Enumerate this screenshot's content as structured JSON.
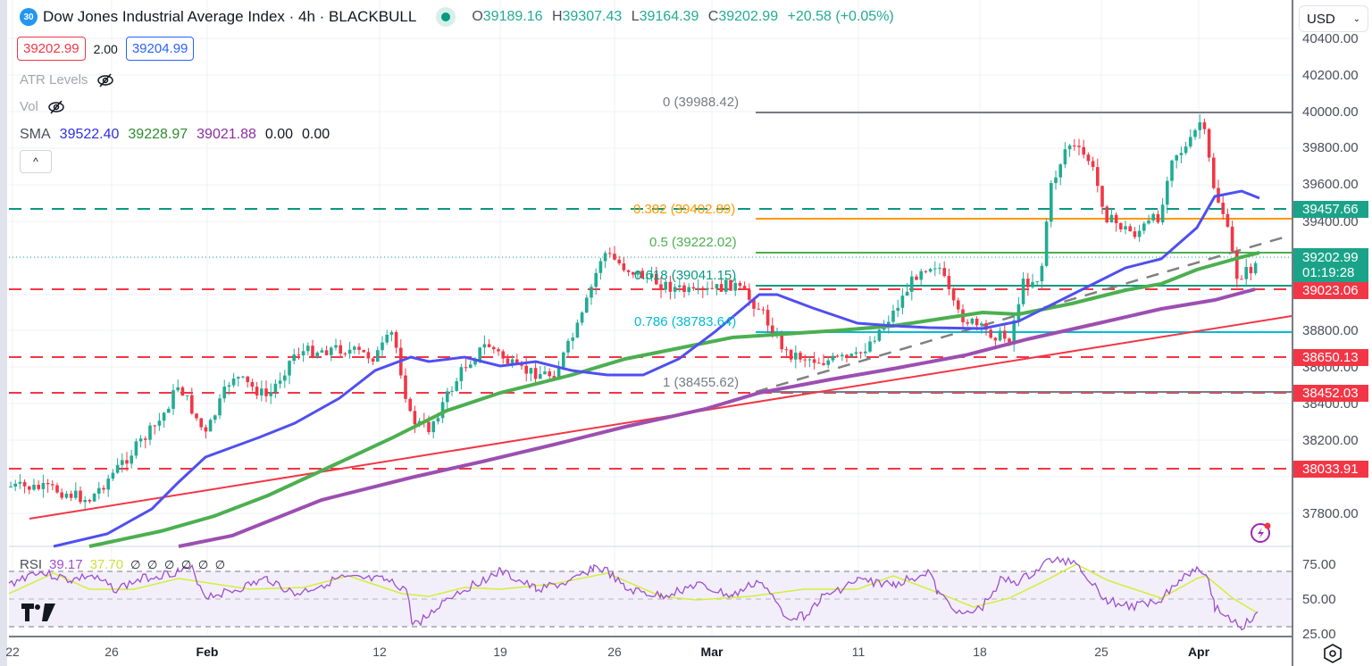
{
  "header": {
    "symbol_badge": "30",
    "title": "Dow Jones Industrial Average Index · 4h · BLACKBULL",
    "ohlc": {
      "o_label": "O",
      "o": "39189.16",
      "h_label": "H",
      "h": "39307.43",
      "l_label": "L",
      "l": "39164.39",
      "c_label": "C",
      "c": "39202.99",
      "change": "+20.58 (+0.05%)"
    },
    "sell_price": "39202.99",
    "spread": "2.00",
    "buy_price": "39204.99"
  },
  "indicators": {
    "atr_label": "ATR Levels",
    "vol_label": "Vol",
    "sma_label": "SMA",
    "sma_values": [
      "39522.40",
      "39228.97",
      "39021.88",
      "0.00",
      "0.00"
    ],
    "collapse_icon": "^"
  },
  "currency_select": "USD",
  "colors": {
    "up": "#22ab94",
    "down": "#f23645",
    "sma_fast": "#4f4ff0",
    "sma_mid": "#4caf50",
    "sma_slow": "#9c4fb0",
    "fib_orange": "#ff9800",
    "fib_cyan": "#00bcd4",
    "fib_teal": "#089981",
    "rsi_line": "#9c4fd0",
    "rsi_ma": "#d4ee3a"
  },
  "price_axis": {
    "labels": [
      "40400.00",
      "40200.00",
      "40000.00",
      "39800.00",
      "39600.00",
      "39400.00",
      "38800.00",
      "38600.00",
      "38400.00",
      "38200.00",
      "37800.00"
    ],
    "tags": [
      {
        "value": "39457.66",
        "color": "green"
      },
      {
        "value": "39202.99",
        "sub": "01:19:28",
        "color": "green"
      },
      {
        "value": "39023.06",
        "color": "red"
      },
      {
        "value": "38650.13",
        "color": "red"
      },
      {
        "value": "38452.03",
        "color": "red"
      },
      {
        "value": "38033.91",
        "color": "red"
      }
    ]
  },
  "time_axis": {
    "labels": [
      "22",
      "26",
      "Feb",
      "12",
      "19",
      "26",
      "Mar",
      "11",
      "18",
      "25",
      "Apr"
    ],
    "bold": [
      "Feb",
      "Mar",
      "Apr"
    ]
  },
  "fib": {
    "l0": "0 (39988.42)",
    "l382": "0.382 (39402.89)",
    "l5": "0.5 (39222.02)",
    "l618": "0.618 (39041.15)",
    "l786": "0.786 (38783.64)",
    "l1": "1 (38455.62)"
  },
  "rsi": {
    "label": "RSI",
    "value": "39.17",
    "ma_value": "37.70",
    "extras": "∅ ∅ ∅ ∅ ∅ ∅",
    "axis": [
      "75.00",
      "50.00",
      "25.00"
    ]
  },
  "chart_data": {
    "type": "candlestick",
    "title": "Dow Jones Industrial Average Index · 4h · BLACKBULL",
    "x_ticks": [
      "22",
      "26",
      "Feb",
      "12",
      "19",
      "26",
      "Mar",
      "11",
      "18",
      "25",
      "Apr"
    ],
    "y_range": [
      37700,
      40450
    ],
    "y_ticks": [
      37800,
      38000,
      38200,
      38400,
      38600,
      38800,
      39000,
      39200,
      39400,
      39600,
      39800,
      40000,
      40200,
      40400
    ],
    "last_close": 39202.99,
    "ohlc_last": {
      "open": 39189.16,
      "high": 39307.43,
      "low": 39164.39,
      "close": 39202.99
    },
    "horizontal_levels": [
      {
        "value": 39457.66,
        "style": "dashed",
        "color": "#089981"
      },
      {
        "value": 39023.06,
        "style": "dashed",
        "color": "#f23645"
      },
      {
        "value": 38650.13,
        "style": "dashed",
        "color": "#f23645"
      },
      {
        "value": 38452.03,
        "style": "dashed",
        "color": "#f23645"
      },
      {
        "value": 38033.91,
        "style": "dashed",
        "color": "#f23645"
      }
    ],
    "fibonacci": [
      {
        "ratio": 0,
        "value": 39988.42
      },
      {
        "ratio": 0.382,
        "value": 39402.89
      },
      {
        "ratio": 0.5,
        "value": 39222.02
      },
      {
        "ratio": 0.618,
        "value": 39041.15
      },
      {
        "ratio": 0.786,
        "value": 38783.64
      },
      {
        "ratio": 1,
        "value": 38455.62
      }
    ],
    "series": [
      {
        "name": "SMA fast",
        "last": 39522.4,
        "approx_points": [
          [
            60,
            37720
          ],
          [
            150,
            37950
          ],
          [
            230,
            38320
          ],
          [
            330,
            38520
          ],
          [
            460,
            38700
          ],
          [
            560,
            38620
          ],
          [
            640,
            38620
          ],
          [
            720,
            38850
          ],
          [
            850,
            39060
          ],
          [
            960,
            38890
          ],
          [
            1060,
            38860
          ],
          [
            1140,
            38900
          ],
          [
            1260,
            39200
          ],
          [
            1360,
            39550
          ],
          [
            1400,
            39540
          ]
        ]
      },
      {
        "name": "SMA mid",
        "last": 39228.97,
        "approx_points": [
          [
            100,
            37720
          ],
          [
            240,
            37950
          ],
          [
            380,
            38250
          ],
          [
            500,
            38480
          ],
          [
            640,
            38620
          ],
          [
            760,
            38740
          ],
          [
            900,
            38790
          ],
          [
            1000,
            38830
          ],
          [
            1090,
            38880
          ],
          [
            1200,
            38970
          ],
          [
            1300,
            39060
          ],
          [
            1390,
            39200
          ]
        ]
      },
      {
        "name": "SMA slow",
        "last": 39021.88,
        "approx_points": [
          [
            200,
            37720
          ],
          [
            360,
            37950
          ],
          [
            540,
            38180
          ],
          [
            700,
            38350
          ],
          [
            850,
            38470
          ],
          [
            1000,
            38600
          ],
          [
            1150,
            38780
          ],
          [
            1300,
            38920
          ],
          [
            1405,
            39000
          ]
        ]
      },
      {
        "name": "Trendline",
        "approx_points": [
          [
            35,
            37760
          ],
          [
            1445,
            38880
          ]
        ]
      }
    ],
    "rsi": {
      "value": 39.17,
      "ma": 37.7,
      "upper": 70,
      "mid": 50,
      "lower": 30
    }
  }
}
